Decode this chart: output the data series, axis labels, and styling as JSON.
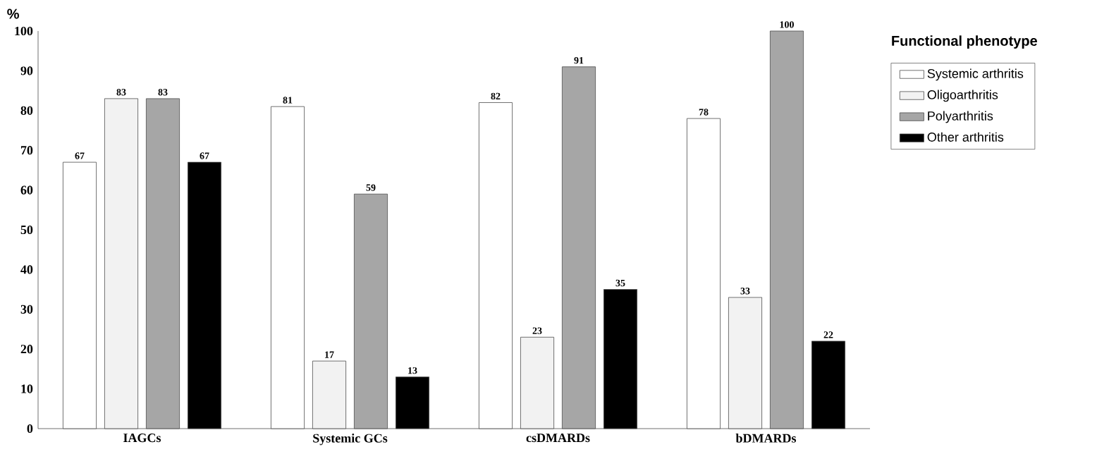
{
  "chart_data": {
    "type": "bar",
    "ylabel": "%",
    "legend_title": "Functional phenotype",
    "categories": [
      "IAGCs",
      "Systemic GCs",
      "csDMARDs",
      "bDMARDs"
    ],
    "series": [
      {
        "name": "Systemic arthritis",
        "color": "#ffffff",
        "values": [
          67,
          81,
          82,
          78
        ]
      },
      {
        "name": "Oligoarthritis",
        "color": "#f2f2f2",
        "values": [
          83,
          17,
          23,
          33
        ]
      },
      {
        "name": "Polyarthritis",
        "color": "#a6a6a6",
        "values": [
          83,
          59,
          91,
          100
        ]
      },
      {
        "name": "Other arthritis",
        "color": "#000000",
        "values": [
          67,
          13,
          35,
          22
        ]
      }
    ],
    "ylim": [
      0,
      100
    ],
    "yticks": [
      0,
      10,
      20,
      30,
      40,
      50,
      60,
      70,
      80,
      90,
      100
    ],
    "data_labels": true,
    "legend": "top right",
    "grid": false
  }
}
